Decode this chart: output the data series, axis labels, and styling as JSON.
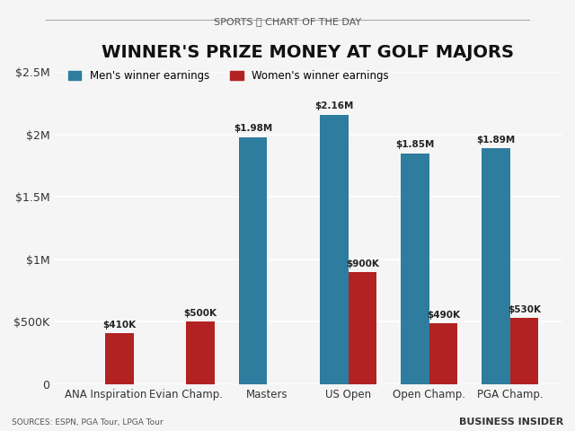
{
  "title": "WINNER'S PRIZE MONEY AT GOLF MAJORS",
  "supertitle": "SPORTS ⛳ CHART OF THE DAY",
  "categories": [
    "ANA Inspiration",
    "Evian Champ.",
    "Masters",
    "US Open",
    "Open Champ.",
    "PGA Champ."
  ],
  "men_values": [
    0,
    0,
    1980000,
    2160000,
    1850000,
    1890000
  ],
  "women_values": [
    410000,
    500000,
    0,
    900000,
    490000,
    530000
  ],
  "men_labels": [
    "",
    "",
    "$1.98M",
    "$2.16M",
    "$1.85M",
    "$1.89M"
  ],
  "women_labels": [
    "$410K",
    "$500K",
    "",
    "$900K",
    "$490K",
    "$530K"
  ],
  "men_color": "#2e7d9e",
  "women_color": "#b22222",
  "ylim": [
    0,
    2500000
  ],
  "yticks": [
    0,
    500000,
    1000000,
    1500000,
    2000000,
    2500000
  ],
  "ytick_labels": [
    "0",
    "$500K",
    "$1M",
    "$1.5M",
    "$2M",
    "$2.5M"
  ],
  "legend_men": "Men's winner earnings",
  "legend_women": "Women's winner earnings",
  "source_text": "SOURCES: ESPN, PGA Tour, LPGA Tour",
  "branding": "BUSINESS INSIDER",
  "background_color": "#f0f0f0",
  "bar_width": 0.35
}
